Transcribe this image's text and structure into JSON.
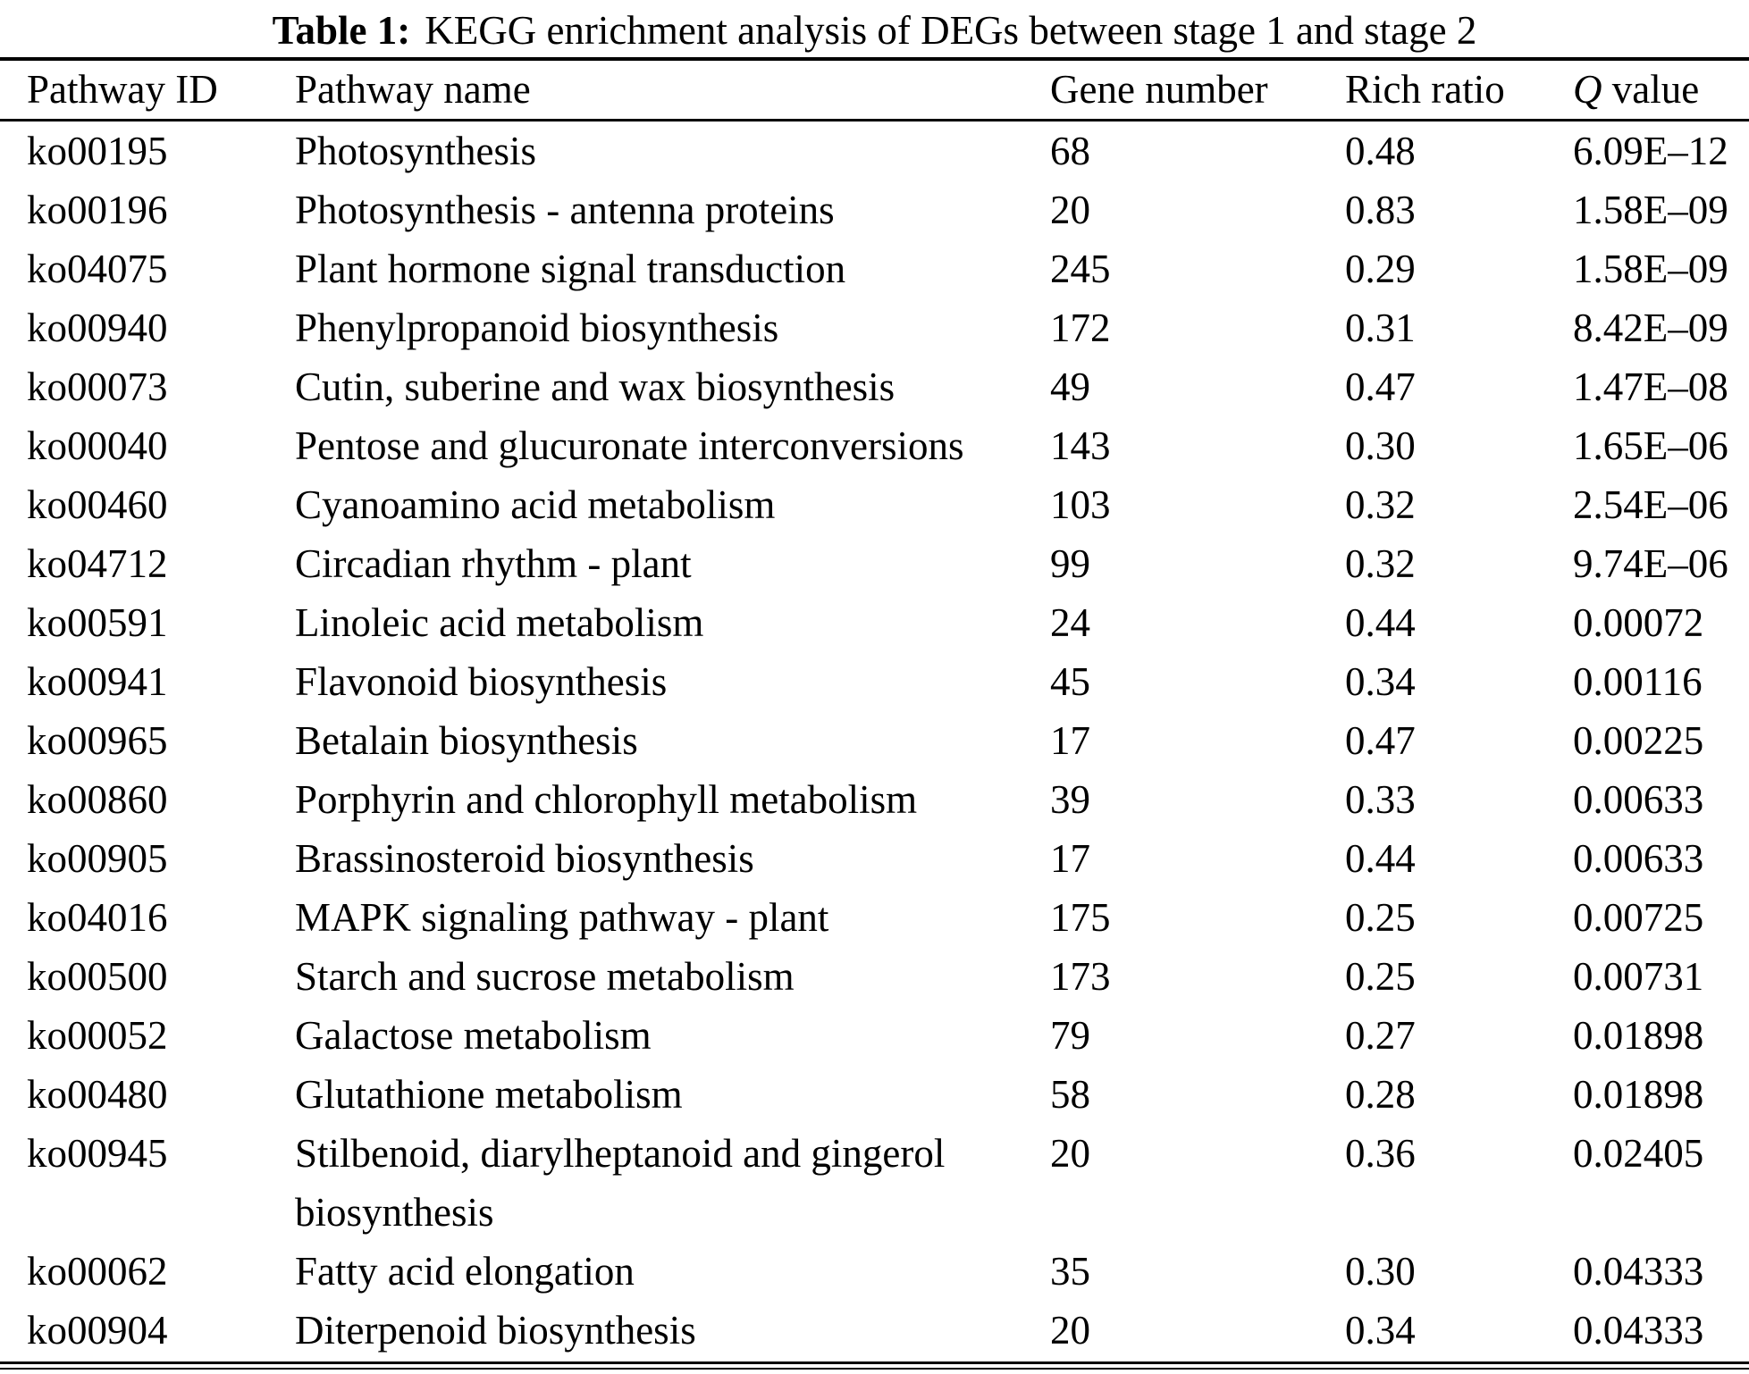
{
  "title": {
    "label": "Table 1:",
    "text": "KEGG enrichment analysis of DEGs between stage 1 and stage 2"
  },
  "table": {
    "columns": [
      "Pathway ID",
      "Pathway name",
      "Gene number",
      "Rich ratio",
      "Q value"
    ],
    "q_header": {
      "italic_part": "Q",
      "rest": " value"
    },
    "rows": [
      {
        "pathway_id": "ko00195",
        "pathway_name": "Photosynthesis",
        "gene_number": "68",
        "rich_ratio": "0.48",
        "q_value": "6.09E–12"
      },
      {
        "pathway_id": "ko00196",
        "pathway_name": "Photosynthesis - antenna proteins",
        "gene_number": "20",
        "rich_ratio": "0.83",
        "q_value": "1.58E–09"
      },
      {
        "pathway_id": "ko04075",
        "pathway_name": "Plant hormone signal transduction",
        "gene_number": "245",
        "rich_ratio": "0.29",
        "q_value": "1.58E–09"
      },
      {
        "pathway_id": "ko00940",
        "pathway_name": "Phenylpropanoid biosynthesis",
        "gene_number": "172",
        "rich_ratio": "0.31",
        "q_value": "8.42E–09"
      },
      {
        "pathway_id": "ko00073",
        "pathway_name": "Cutin, suberine and wax biosynthesis",
        "gene_number": "49",
        "rich_ratio": "0.47",
        "q_value": "1.47E–08"
      },
      {
        "pathway_id": "ko00040",
        "pathway_name": "Pentose and glucuronate interconversions",
        "gene_number": "143",
        "rich_ratio": "0.30",
        "q_value": "1.65E–06"
      },
      {
        "pathway_id": "ko00460",
        "pathway_name": "Cyanoamino acid metabolism",
        "gene_number": "103",
        "rich_ratio": "0.32",
        "q_value": "2.54E–06"
      },
      {
        "pathway_id": "ko04712",
        "pathway_name": "Circadian rhythm - plant",
        "gene_number": "99",
        "rich_ratio": "0.32",
        "q_value": "9.74E–06"
      },
      {
        "pathway_id": "ko00591",
        "pathway_name": "Linoleic acid metabolism",
        "gene_number": "24",
        "rich_ratio": "0.44",
        "q_value": "0.00072"
      },
      {
        "pathway_id": "ko00941",
        "pathway_name": "Flavonoid biosynthesis",
        "gene_number": "45",
        "rich_ratio": "0.34",
        "q_value": "0.00116"
      },
      {
        "pathway_id": "ko00965",
        "pathway_name": "Betalain biosynthesis",
        "gene_number": "17",
        "rich_ratio": "0.47",
        "q_value": "0.00225"
      },
      {
        "pathway_id": "ko00860",
        "pathway_name": "Porphyrin and chlorophyll metabolism",
        "gene_number": "39",
        "rich_ratio": "0.33",
        "q_value": "0.00633"
      },
      {
        "pathway_id": "ko00905",
        "pathway_name": "Brassinosteroid biosynthesis",
        "gene_number": "17",
        "rich_ratio": "0.44",
        "q_value": "0.00633"
      },
      {
        "pathway_id": "ko04016",
        "pathway_name": "MAPK signaling pathway - plant",
        "gene_number": "175",
        "rich_ratio": "0.25",
        "q_value": "0.00725"
      },
      {
        "pathway_id": "ko00500",
        "pathway_name": "Starch and sucrose metabolism",
        "gene_number": "173",
        "rich_ratio": "0.25",
        "q_value": "0.00731"
      },
      {
        "pathway_id": "ko00052",
        "pathway_name": "Galactose metabolism",
        "gene_number": "79",
        "rich_ratio": "0.27",
        "q_value": "0.01898"
      },
      {
        "pathway_id": "ko00480",
        "pathway_name": "Glutathione metabolism",
        "gene_number": "58",
        "rich_ratio": "0.28",
        "q_value": "0.01898"
      },
      {
        "pathway_id": "ko00945",
        "pathway_name": "Stilbenoid, diarylheptanoid and gingerol biosynthesis",
        "gene_number": "20",
        "rich_ratio": "0.36",
        "q_value": "0.02405"
      },
      {
        "pathway_id": "ko00062",
        "pathway_name": "Fatty acid elongation",
        "gene_number": "35",
        "rich_ratio": "0.30",
        "q_value": "0.04333"
      },
      {
        "pathway_id": "ko00904",
        "pathway_name": "Diterpenoid biosynthesis",
        "gene_number": "20",
        "rich_ratio": "0.34",
        "q_value": "0.04333"
      }
    ]
  }
}
